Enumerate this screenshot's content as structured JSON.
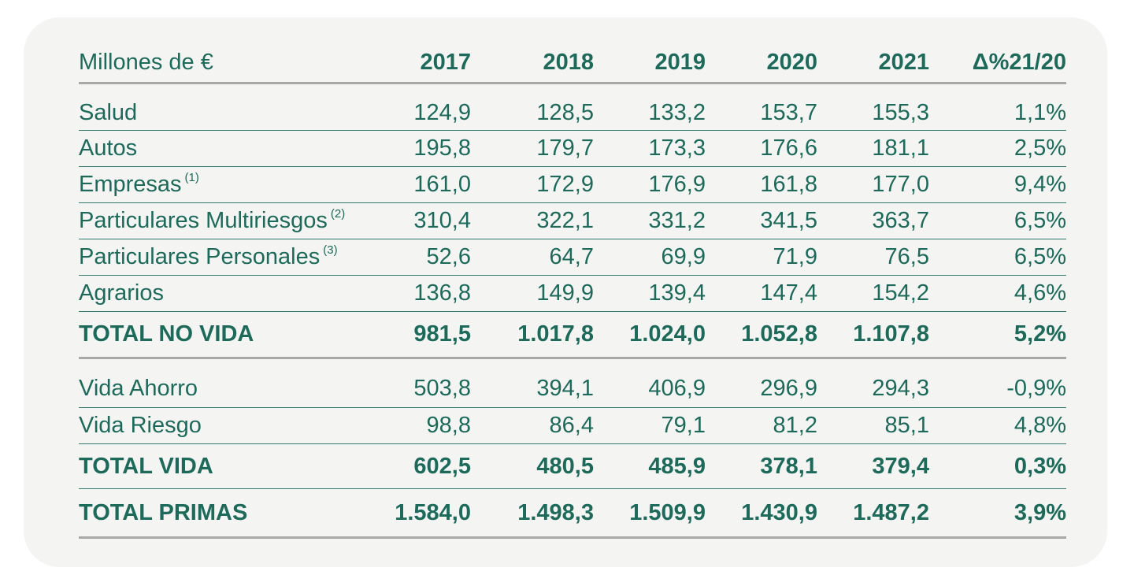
{
  "table": {
    "header": {
      "label": "Millones de €",
      "columns": [
        "2017",
        "2018",
        "2019",
        "2020",
        "2021",
        "Δ%21/20"
      ]
    },
    "rows": [
      {
        "label": "Salud",
        "note": "",
        "values": [
          "124,9",
          "128,5",
          "133,2",
          "153,7",
          "155,3",
          "1,1%"
        ]
      },
      {
        "label": "Autos",
        "note": "",
        "values": [
          "195,8",
          "179,7",
          "173,3",
          "176,6",
          "181,1",
          "2,5%"
        ]
      },
      {
        "label": "Empresas",
        "note": "(1)",
        "values": [
          "161,0",
          "172,9",
          "176,9",
          "161,8",
          "177,0",
          "9,4%"
        ]
      },
      {
        "label": "Particulares Multiriesgos",
        "note": "(2)",
        "values": [
          "310,4",
          "322,1",
          "331,2",
          "341,5",
          "363,7",
          "6,5%"
        ]
      },
      {
        "label": "Particulares Personales",
        "note": "(3)",
        "values": [
          "52,6",
          "64,7",
          "69,9",
          "71,9",
          "76,5",
          "6,5%"
        ]
      },
      {
        "label": "Agrarios",
        "note": "",
        "values": [
          "136,8",
          "149,9",
          "139,4",
          "147,4",
          "154,2",
          "4,6%"
        ]
      },
      {
        "label": "TOTAL NO VIDA",
        "note": "",
        "values": [
          "981,5",
          "1.017,8",
          "1.024,0",
          "1.052,8",
          "1.107,8",
          "5,2%"
        ]
      },
      {
        "label": "Vida Ahorro",
        "note": "",
        "values": [
          "503,8",
          "394,1",
          "406,9",
          "296,9",
          "294,3",
          "-0,9%"
        ]
      },
      {
        "label": "Vida Riesgo",
        "note": "",
        "values": [
          "98,8",
          "86,4",
          "79,1",
          "81,2",
          "85,1",
          "4,8%"
        ]
      },
      {
        "label": "TOTAL VIDA",
        "note": "",
        "values": [
          "602,5",
          "480,5",
          "485,9",
          "378,1",
          "379,4",
          "0,3%"
        ]
      },
      {
        "label": "TOTAL PRIMAS",
        "note": "",
        "values": [
          "1.584,0",
          "1.498,3",
          "1.509,9",
          "1.430,9",
          "1.487,2",
          "3,9%"
        ]
      }
    ]
  }
}
